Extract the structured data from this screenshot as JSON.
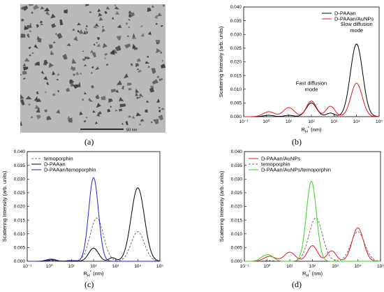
{
  "panels": {
    "a": {
      "label": "(a)",
      "scale_bar": "50 nm"
    },
    "b": {
      "label": "(b)"
    },
    "c": {
      "label": "(c)"
    },
    "d": {
      "label": "(d)"
    }
  },
  "colors": {
    "black": "#000000",
    "red": "#e8141b",
    "blue": "#1c22d6",
    "green": "#2fd81f",
    "gray": "#6f6f6f"
  },
  "chart_data": [
    {
      "id": "b",
      "type": "line",
      "ylabel": "Scattering Intensity (arb. units)",
      "xlabel": "R_H* (nm)",
      "xscale": "log",
      "xlim": [
        0.1,
        100000
      ],
      "ylim": [
        0,
        0.04
      ],
      "x_ticks": [
        "10⁻¹",
        "10⁰",
        "10¹",
        "10²",
        "10³",
        "10⁴",
        "10⁵"
      ],
      "y_ticks": [
        "0.000",
        "0.005",
        "0.010",
        "0.015",
        "0.020",
        "0.025",
        "0.030",
        "0.035",
        "0.040"
      ],
      "legend_position": "top-right",
      "annotations": [
        {
          "text": "Fast diffusion mode",
          "x": 100,
          "y": 0.0075
        },
        {
          "text": "Slow diffusion mode",
          "x": 10000,
          "y": 0.029
        }
      ],
      "series": [
        {
          "name": "D-PAAan",
          "color": "#000000",
          "style": "solid",
          "peaks": [
            [
              1.3,
              0.0005,
              0.22
            ],
            [
              10,
              0.0005,
              0.2
            ],
            [
              100,
              0.005,
              0.23
            ],
            [
              700,
              0.0013,
              0.18
            ],
            [
              10000,
              0.0265,
              0.27
            ]
          ]
        },
        {
          "name": "D-PAAan/AuNPs",
          "color": "#e8141b",
          "style": "solid",
          "peaks": [
            [
              1.3,
              0.0018,
              0.25
            ],
            [
              10,
              0.0033,
              0.24
            ],
            [
              100,
              0.0057,
              0.22
            ],
            [
              700,
              0.0038,
              0.2
            ],
            [
              10000,
              0.0122,
              0.25
            ]
          ]
        }
      ]
    },
    {
      "id": "c",
      "type": "line",
      "ylabel": "Scattering Intensity (arb. units)",
      "xlabel": "R_H* (nm)",
      "xscale": "log",
      "xlim": [
        0.1,
        100000
      ],
      "ylim": [
        0,
        0.04
      ],
      "x_ticks": [
        "10⁻¹",
        "10⁰",
        "10¹",
        "10²",
        "10³",
        "10⁴",
        "10⁵"
      ],
      "y_ticks": [
        "0.000",
        "0.005",
        "0.010",
        "0.015",
        "0.020",
        "0.025",
        "0.030",
        "0.035",
        "0.040"
      ],
      "legend_position": "top-left",
      "series": [
        {
          "name": "temoporphin",
          "color": "#6f6f6f",
          "style": "dashed",
          "peaks": [
            [
              1.2,
              0.0003,
              0.2
            ],
            [
              140,
              0.0158,
              0.3
            ],
            [
              10000,
              0.0108,
              0.3
            ]
          ]
        },
        {
          "name": "D-PAAan",
          "color": "#000000",
          "style": "solid",
          "peaks": [
            [
              1.3,
              0.0005,
              0.2
            ],
            [
              100,
              0.0048,
              0.22
            ],
            [
              700,
              0.0013,
              0.15
            ],
            [
              10000,
              0.0268,
              0.3
            ]
          ]
        },
        {
          "name": "D-PAAan/temoporphin",
          "color": "#1c22d6",
          "style": "solid",
          "peaks": [
            [
              1.2,
              0.0008,
              0.22
            ],
            [
              10,
              0.0003,
              0.2
            ],
            [
              100,
              0.0305,
              0.22
            ]
          ]
        }
      ]
    },
    {
      "id": "d",
      "type": "line",
      "ylabel": "Scattering Intensity (arb. units)",
      "xlabel": "R_H* (nm)",
      "xscale": "log",
      "xlim": [
        0.1,
        100000
      ],
      "ylim": [
        0,
        0.04
      ],
      "x_ticks": [
        "10⁻¹",
        "10⁰",
        "10¹",
        "10²",
        "10³",
        "10⁴",
        "10⁵"
      ],
      "y_ticks": [
        "0.000",
        "0.005",
        "0.010",
        "0.015",
        "0.020",
        "0.025",
        "0.030",
        "0.035",
        "0.040"
      ],
      "legend_position": "top-left",
      "series": [
        {
          "name": "D-PAAan/AuNPs",
          "color": "#e8141b",
          "style": "solid",
          "peaks": [
            [
              1.3,
              0.0018,
              0.25
            ],
            [
              10,
              0.0033,
              0.24
            ],
            [
              100,
              0.0057,
              0.22
            ],
            [
              700,
              0.0038,
              0.2
            ],
            [
              10000,
              0.0122,
              0.25
            ]
          ]
        },
        {
          "name": "temoporphin",
          "color": "#6f6f6f",
          "style": "dashed",
          "peaks": [
            [
              1.2,
              0.0003,
              0.2
            ],
            [
              140,
              0.0158,
              0.3
            ],
            [
              10000,
              0.0108,
              0.3
            ]
          ]
        },
        {
          "name": "D-PAAan/AuNPs/temoporphin",
          "color": "#2fd81f",
          "style": "solid",
          "peaks": [
            [
              0.7,
              0.0012,
              0.2
            ],
            [
              1.3,
              0.0018,
              0.2
            ],
            [
              90,
              0.0292,
              0.22
            ]
          ]
        }
      ]
    }
  ]
}
